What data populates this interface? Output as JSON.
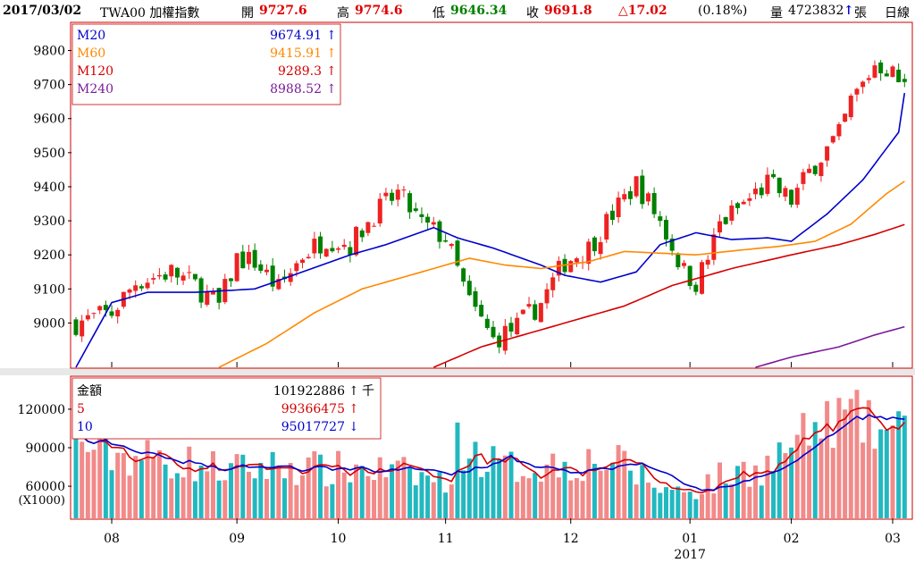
{
  "header": {
    "date": "2017/03/02",
    "symbol": "TWA00 加權指數",
    "open_label": "開",
    "open": "9727.6",
    "high_label": "高",
    "high": "9774.6",
    "low_label": "低",
    "low": "9646.34",
    "close_label": "收",
    "close": "9691.8",
    "change": "△17.02",
    "change_pct": "(0.18%)",
    "volume_label": "量",
    "volume": "4723832",
    "volume_arrow": "↑",
    "volume_unit": "張",
    "period": "日線"
  },
  "colors": {
    "up": "#ee2222",
    "down": "#008000",
    "vol_up": "#f28a8a",
    "vol_down": "#22b8c0",
    "ma20": "#0000cc",
    "ma60": "#ff8800",
    "ma120": "#d40000",
    "ma240": "#7a1a9a",
    "frame": "#cc0000"
  },
  "price_legend": [
    {
      "name": "M20",
      "value": "9674.91",
      "arrow": "↑",
      "color": "#0000cc"
    },
    {
      "name": "M60",
      "value": "9415.91",
      "arrow": "↑",
      "color": "#ff8800"
    },
    {
      "name": "M120",
      "value": "9289.3",
      "arrow": "↑",
      "color": "#d40000"
    },
    {
      "name": "M240",
      "value": "8988.52",
      "arrow": "↑",
      "color": "#7a1a9a"
    }
  ],
  "volume_legend": [
    {
      "name": "金額",
      "value": "101922886",
      "arrow": "↑",
      "unit": "千",
      "color": "#000000"
    },
    {
      "name": "5",
      "value": "99366475",
      "arrow": "↑",
      "unit": "",
      "color": "#d40000"
    },
    {
      "name": "10",
      "value": "95017727",
      "arrow": "↓",
      "unit": "",
      "color": "#0000cc"
    }
  ],
  "chart_data": {
    "type": "candlestick",
    "price_axis": {
      "ticks": [
        9000,
        9100,
        9200,
        9300,
        9400,
        9500,
        9600,
        9700,
        9800
      ],
      "range": [
        8870,
        9880
      ]
    },
    "volume_axis": {
      "ticks": [
        60000,
        90000,
        120000
      ],
      "range": [
        35000,
        145000
      ],
      "unit_label": "(X1000)"
    },
    "x_ticks": [
      {
        "label": "08",
        "i": 6
      },
      {
        "label": "09",
        "i": 27
      },
      {
        "label": "10",
        "i": 44
      },
      {
        "label": "11",
        "i": 62
      },
      {
        "label": "12",
        "i": 83
      },
      {
        "label": "01",
        "i": 103
      },
      {
        "label": "02",
        "i": 120
      },
      {
        "label": "03",
        "i": 137
      }
    ],
    "year_label": {
      "label": "2017",
      "i": 103
    },
    "ma_anchors": {
      "ma20": [
        [
          0,
          8870
        ],
        [
          6,
          9060
        ],
        [
          12,
          9090
        ],
        [
          20,
          9090
        ],
        [
          30,
          9100
        ],
        [
          38,
          9150
        ],
        [
          46,
          9200
        ],
        [
          52,
          9230
        ],
        [
          60,
          9280
        ],
        [
          64,
          9250
        ],
        [
          70,
          9220
        ],
        [
          78,
          9170
        ],
        [
          82,
          9140
        ],
        [
          88,
          9120
        ],
        [
          94,
          9150
        ],
        [
          98,
          9230
        ],
        [
          104,
          9265
        ],
        [
          110,
          9245
        ],
        [
          116,
          9250
        ],
        [
          120,
          9240
        ],
        [
          126,
          9320
        ],
        [
          132,
          9420
        ],
        [
          138,
          9560
        ],
        [
          139,
          9675
        ]
      ],
      "ma60": [
        [
          24,
          8870
        ],
        [
          32,
          8940
        ],
        [
          40,
          9030
        ],
        [
          48,
          9100
        ],
        [
          56,
          9140
        ],
        [
          60,
          9160
        ],
        [
          66,
          9190
        ],
        [
          72,
          9170
        ],
        [
          78,
          9160
        ],
        [
          86,
          9180
        ],
        [
          92,
          9210
        ],
        [
          98,
          9205
        ],
        [
          104,
          9200
        ],
        [
          112,
          9215
        ],
        [
          118,
          9225
        ],
        [
          124,
          9240
        ],
        [
          130,
          9290
        ],
        [
          136,
          9380
        ],
        [
          139,
          9416
        ]
      ],
      "ma120": [
        [
          60,
          8870
        ],
        [
          68,
          8930
        ],
        [
          80,
          8990
        ],
        [
          92,
          9050
        ],
        [
          100,
          9110
        ],
        [
          110,
          9160
        ],
        [
          120,
          9200
        ],
        [
          128,
          9230
        ],
        [
          134,
          9260
        ],
        [
          139,
          9289
        ]
      ],
      "ma240": [
        [
          114,
          8870
        ],
        [
          120,
          8900
        ],
        [
          128,
          8930
        ],
        [
          134,
          8965
        ],
        [
          139,
          8989
        ]
      ]
    },
    "price_anchors": [
      [
        0,
        9000
      ],
      [
        6,
        9030
      ],
      [
        10,
        9120
      ],
      [
        16,
        9150
      ],
      [
        20,
        9110
      ],
      [
        24,
        9050
      ],
      [
        27,
        9190
      ],
      [
        30,
        9180
      ],
      [
        34,
        9100
      ],
      [
        38,
        9200
      ],
      [
        42,
        9250
      ],
      [
        46,
        9230
      ],
      [
        50,
        9320
      ],
      [
        54,
        9380
      ],
      [
        58,
        9290
      ],
      [
        62,
        9250
      ],
      [
        66,
        9060
      ],
      [
        70,
        8950
      ],
      [
        74,
        8990
      ],
      [
        78,
        9060
      ],
      [
        82,
        9180
      ],
      [
        86,
        9220
      ],
      [
        90,
        9320
      ],
      [
        94,
        9410
      ],
      [
        98,
        9300
      ],
      [
        102,
        9150
      ],
      [
        104,
        9120
      ],
      [
        106,
        9190
      ],
      [
        108,
        9290
      ],
      [
        112,
        9350
      ],
      [
        116,
        9410
      ],
      [
        120,
        9360
      ],
      [
        124,
        9470
      ],
      [
        128,
        9550
      ],
      [
        130,
        9650
      ],
      [
        132,
        9700
      ],
      [
        134,
        9760
      ],
      [
        136,
        9750
      ],
      [
        139,
        9692
      ]
    ],
    "volume_anchors": [
      [
        0,
        92000
      ],
      [
        6,
        82000
      ],
      [
        12,
        80000
      ],
      [
        20,
        75000
      ],
      [
        26,
        70000
      ],
      [
        30,
        72000
      ],
      [
        36,
        74000
      ],
      [
        42,
        70000
      ],
      [
        48,
        72000
      ],
      [
        54,
        68000
      ],
      [
        60,
        64000
      ],
      [
        62,
        58000
      ],
      [
        64,
        90000
      ],
      [
        68,
        80000
      ],
      [
        72,
        72000
      ],
      [
        78,
        74000
      ],
      [
        84,
        76000
      ],
      [
        88,
        78000
      ],
      [
        92,
        74000
      ],
      [
        96,
        62000
      ],
      [
        100,
        54000
      ],
      [
        104,
        58000
      ],
      [
        108,
        64000
      ],
      [
        112,
        70000
      ],
      [
        116,
        74000
      ],
      [
        120,
        90000
      ],
      [
        124,
        100000
      ],
      [
        128,
        110000
      ],
      [
        130,
        112000
      ],
      [
        134,
        100000
      ],
      [
        139,
        98000
      ]
    ],
    "n_bars": 140
  }
}
